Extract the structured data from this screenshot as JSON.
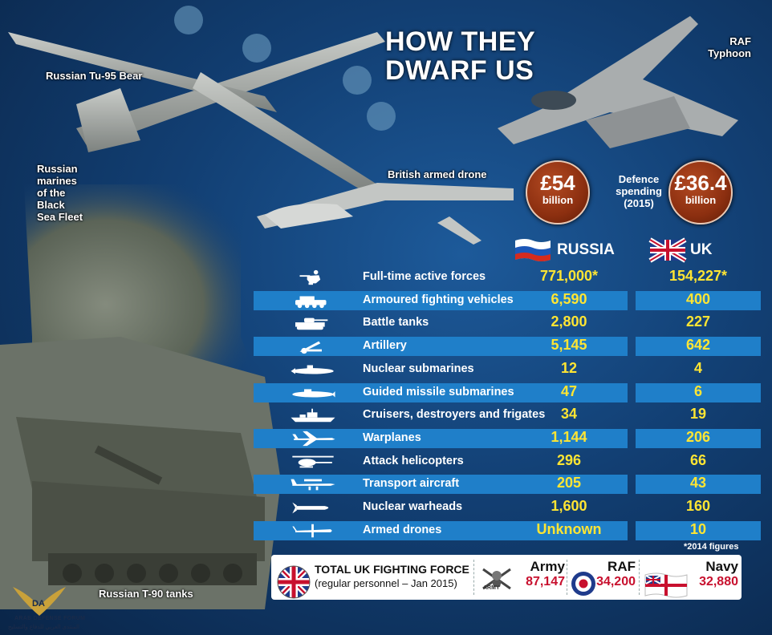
{
  "title_line1": "HOW THEY",
  "title_line2": "DWARF US",
  "captions": {
    "tu95": "Russian Tu-95 Bear",
    "typhoon_1": "RAF",
    "typhoon_2": "Typhoon",
    "marines_1": "Russian",
    "marines_2": "marines",
    "marines_3": "of the",
    "marines_4": "Black",
    "marines_5": "Sea Fleet",
    "drone": "British armed drone",
    "tanks": "Russian T-90 tanks"
  },
  "spending": {
    "russia_amount": "£54",
    "russia_unit": "billion",
    "label_1": "Defence",
    "label_2": "spending",
    "label_3": "(2015)",
    "uk_amount": "£36.4",
    "uk_unit": "billion"
  },
  "columns": {
    "russia": "RUSSIA",
    "uk": "UK"
  },
  "rows": [
    {
      "icon": "soldier-icon",
      "label": "Full-time active forces",
      "russia": "771,000*",
      "uk": "154,227*",
      "shaded": false
    },
    {
      "icon": "armoured-vehicle-icon",
      "label": "Armoured fighting vehicles",
      "russia": "6,590",
      "uk": "400",
      "shaded": true
    },
    {
      "icon": "tank-icon",
      "label": "Battle tanks",
      "russia": "2,800",
      "uk": "227",
      "shaded": false
    },
    {
      "icon": "artillery-icon",
      "label": "Artillery",
      "russia": "5,145",
      "uk": "642",
      "shaded": true
    },
    {
      "icon": "nuclear-submarine-icon",
      "label": "Nuclear submarines",
      "russia": "12",
      "uk": "4",
      "shaded": false
    },
    {
      "icon": "missile-submarine-icon",
      "label": "Guided missile submarines",
      "russia": "47",
      "uk": "6",
      "shaded": true
    },
    {
      "icon": "warship-icon",
      "label": "Cruisers, destroyers and frigates",
      "russia": "34",
      "uk": "19",
      "shaded": false
    },
    {
      "icon": "warplane-icon",
      "label": "Warplanes",
      "russia": "1,144",
      "uk": "206",
      "shaded": true
    },
    {
      "icon": "helicopter-icon",
      "label": "Attack helicopters",
      "russia": "296",
      "uk": "66",
      "shaded": false
    },
    {
      "icon": "transport-aircraft-icon",
      "label": "Transport aircraft",
      "russia": "205",
      "uk": "43",
      "shaded": true
    },
    {
      "icon": "warhead-icon",
      "label": "Nuclear warheads",
      "russia": "1,600",
      "uk": "160",
      "shaded": false
    },
    {
      "icon": "drone-icon",
      "label": "Armed drones",
      "russia": "Unknown",
      "uk": "10",
      "shaded": true
    }
  ],
  "footnote": "*2014 figures",
  "footer": {
    "title": "TOTAL UK FIGHTING FORCE",
    "subtitle": "(regular personnel – Jan 2015)",
    "army_label": "Army",
    "army_value": "87,147",
    "army_badge": "ARMY",
    "raf_label": "RAF",
    "raf_value": "34,200",
    "navy_label": "Navy",
    "navy_value": "32,880"
  },
  "watermark": {
    "line1": "ARAB DEFENSE FORUM",
    "line2": "المنتدى العربي للدفاع والتسليح"
  },
  "colors": {
    "accent_yellow": "#ffe533",
    "band_blue": "#1f7fc9",
    "value_red": "#c8102e",
    "coin_brown": "#8c2f10"
  }
}
